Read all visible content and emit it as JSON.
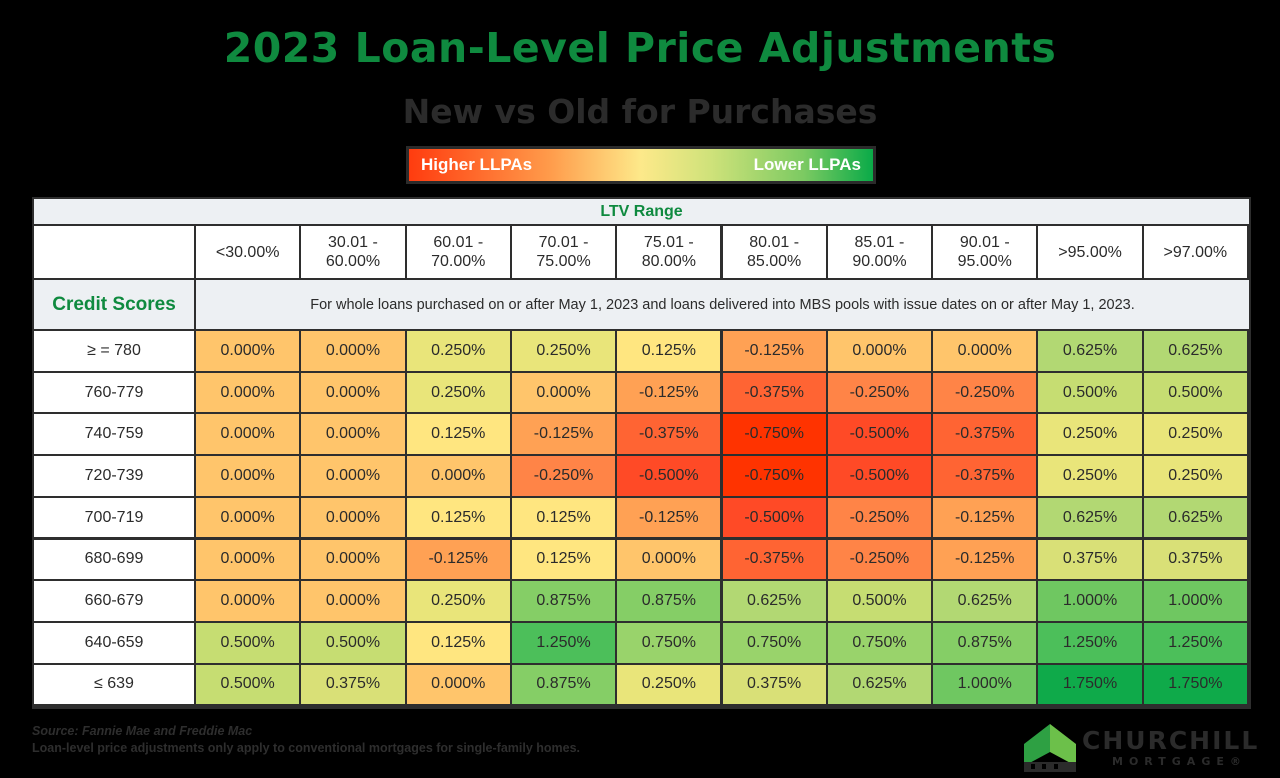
{
  "header": {
    "title": "2023 Loan-Level Price Adjustments",
    "subtitle": "New vs Old for Purchases"
  },
  "legend": {
    "left_label": "Higher LLPAs",
    "right_label": "Lower LLPAs"
  },
  "table": {
    "group_header": "LTV Range",
    "row_header_label": "Credit Scores",
    "note": "For whole loans purchased on or after May 1, 2023 and loans delivered into MBS pools with issue dates on or after May 1, 2023."
  },
  "footer": {
    "source_prefix": "Source:",
    "source_names": "Fannie Mae and Freddie Mac",
    "disclaimer": "Loan-level price adjustments only apply to conventional mortgages for single-family homes."
  },
  "logo": {
    "name": "CHURCHILL",
    "sub": "MORTGAGE®"
  },
  "colors": {
    "title_green": "#0f8a3f",
    "subtitle_dark": "#2b2b2b",
    "-0.750%": "#ff3300",
    "-0.500%": "#ff4a26",
    "-0.375%": "#ff6433",
    "-0.250%": "#ff8447",
    "-0.125%": "#ffa154",
    "0.000%": "#ffc56b",
    "0.125%": "#ffe680",
    "0.250%": "#e9e57a",
    "0.375%": "#d9e077",
    "0.500%": "#c6dd72",
    "0.625%": "#b2d873",
    "0.750%": "#99d36b",
    "0.875%": "#85ce66",
    "1.000%": "#6fc761",
    "1.250%": "#4cbf5a",
    "1.750%": "#0faa4a"
  },
  "chart_data": {
    "type": "heatmap",
    "title": "2023 Loan-Level Price Adjustments",
    "subtitle": "New vs Old for Purchases",
    "xlabel": "LTV Range",
    "ylabel": "Credit Scores",
    "legend": {
      "low_end": "Higher LLPAs",
      "high_end": "Lower LLPAs",
      "position": "top"
    },
    "columns": [
      "<30.00%",
      "30.01 - 60.00%",
      "60.01 - 70.00%",
      "70.01 - 75.00%",
      "75.01 - 80.00%",
      "80.01 - 85.00%",
      "85.01 - 90.00%",
      "90.01 - 95.00%",
      ">95.00%",
      ">97.00%"
    ],
    "rows": [
      "≥ = 780",
      "760-779",
      "740-759",
      "720-739",
      "700-719",
      "680-699",
      "660-679",
      "640-659",
      "≤ 639"
    ],
    "values": [
      [
        "0.000%",
        "0.000%",
        "0.250%",
        "0.250%",
        "0.125%",
        "-0.125%",
        "0.000%",
        "0.000%",
        "0.625%",
        "0.625%"
      ],
      [
        "0.000%",
        "0.000%",
        "0.250%",
        "0.000%",
        "-0.125%",
        "-0.375%",
        "-0.250%",
        "-0.250%",
        "0.500%",
        "0.500%"
      ],
      [
        "0.000%",
        "0.000%",
        "0.125%",
        "-0.125%",
        "-0.375%",
        "-0.750%",
        "-0.500%",
        "-0.375%",
        "0.250%",
        "0.250%"
      ],
      [
        "0.000%",
        "0.000%",
        "0.000%",
        "-0.250%",
        "-0.500%",
        "-0.750%",
        "-0.500%",
        "-0.375%",
        "0.250%",
        "0.250%"
      ],
      [
        "0.000%",
        "0.000%",
        "0.125%",
        "0.125%",
        "-0.125%",
        "-0.500%",
        "-0.250%",
        "-0.125%",
        "0.625%",
        "0.625%"
      ],
      [
        "0.000%",
        "0.000%",
        "-0.125%",
        "0.125%",
        "0.000%",
        "-0.375%",
        "-0.250%",
        "-0.125%",
        "0.375%",
        "0.375%"
      ],
      [
        "0.000%",
        "0.000%",
        "0.250%",
        "0.875%",
        "0.875%",
        "0.625%",
        "0.500%",
        "0.625%",
        "1.000%",
        "1.000%"
      ],
      [
        "0.500%",
        "0.500%",
        "0.125%",
        "1.250%",
        "0.750%",
        "0.750%",
        "0.750%",
        "0.875%",
        "1.250%",
        "1.250%"
      ],
      [
        "0.500%",
        "0.375%",
        "0.000%",
        "0.875%",
        "0.250%",
        "0.375%",
        "0.625%",
        "1.000%",
        "1.750%",
        "1.750%"
      ]
    ]
  }
}
